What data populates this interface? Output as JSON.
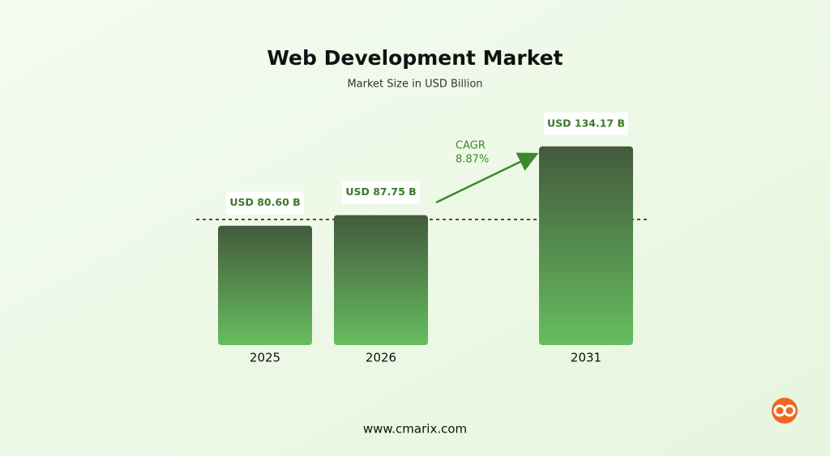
{
  "chart_data": {
    "type": "bar",
    "title": "Web Development Market",
    "subtitle": "Market Size in USD Billion",
    "categories": [
      "2025",
      "2026",
      "2031"
    ],
    "values": [
      80.6,
      87.75,
      134.17
    ],
    "value_labels": [
      "USD 80.60 B",
      "USD 87.75 B",
      "USD 134.17 B"
    ],
    "annotations": [
      "CAGR",
      "8.87%"
    ],
    "footer": "www.cmarix.com",
    "color": [
      "#435a3d",
      "#66bd5e"
    ],
    "ylim": [
      0,
      145
    ]
  }
}
